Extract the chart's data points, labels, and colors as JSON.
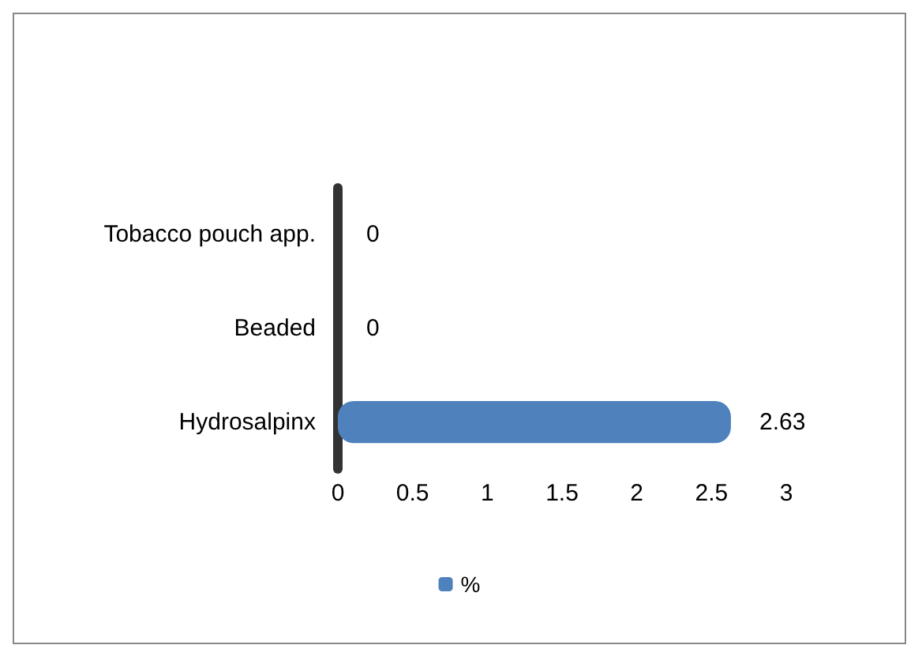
{
  "chart_data": {
    "type": "bar",
    "orientation": "horizontal",
    "categories": [
      "Tobacco pouch app.",
      "Beaded",
      "Hydrosalpinx"
    ],
    "series": [
      {
        "name": "%",
        "color": "#4f81bd",
        "values": [
          0,
          0,
          2.63
        ]
      }
    ],
    "xlim": [
      0,
      3
    ],
    "xticks": [
      0,
      0.5,
      1,
      1.5,
      2,
      2.5,
      3
    ],
    "data_labels": true,
    "grid": false,
    "legend": "bottom"
  }
}
